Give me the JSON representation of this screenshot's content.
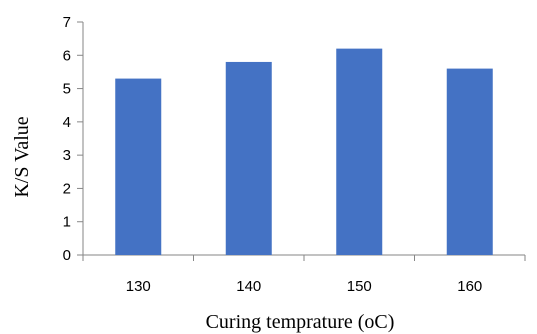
{
  "chart_data": {
    "type": "bar",
    "categories": [
      "130",
      "140",
      "150",
      "160"
    ],
    "values": [
      5.3,
      5.8,
      6.2,
      5.6
    ],
    "xlabel": "Curing temprature (oC)",
    "ylabel": "K/S Value",
    "ylim": [
      0,
      7
    ],
    "yticks": [
      0,
      1,
      2,
      3,
      4,
      5,
      6,
      7
    ],
    "grid": false,
    "legend": "none",
    "bar_color": "#4472C4",
    "axis_color": "#868686"
  }
}
